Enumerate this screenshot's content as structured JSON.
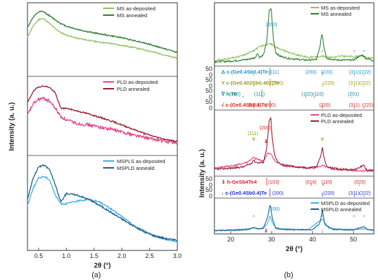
{
  "panels": {
    "a": "(a)",
    "b": "(b)"
  },
  "chart_data": [
    {
      "type": "line",
      "panel": "(a)",
      "xlabel": "2θ (°)",
      "ylabel": "Intensity (a. u.)",
      "xlim": [
        0.3,
        3.0
      ],
      "xticks": [
        "0.5",
        "1.0",
        "1.5",
        "2.0",
        "2.5",
        "3.0"
      ],
      "subplots": [
        {
          "legend_position": "top-right",
          "series": [
            {
              "name": "MS as-deposited",
              "color": "#8cc15a",
              "x": [
                0.3,
                0.4,
                0.5,
                0.55,
                0.6,
                0.7,
                0.8,
                0.9,
                1.0,
                1.2,
                1.4,
                1.6,
                1.8,
                2.0,
                2.2,
                2.4,
                2.6,
                2.8,
                3.0
              ],
              "y": [
                0.55,
                0.72,
                0.82,
                0.84,
                0.83,
                0.76,
                0.68,
                0.62,
                0.58,
                0.53,
                0.5,
                0.47,
                0.45,
                0.42,
                0.39,
                0.35,
                0.31,
                0.26,
                0.22
              ]
            },
            {
              "name": "MS annealed",
              "color": "#2e7d32",
              "x": [
                0.3,
                0.4,
                0.5,
                0.55,
                0.6,
                0.7,
                0.8,
                0.9,
                1.0,
                1.2,
                1.4,
                1.6,
                1.8,
                2.0,
                2.2,
                2.4,
                2.6,
                2.8,
                3.0
              ],
              "y": [
                0.7,
                0.86,
                0.94,
                0.95,
                0.94,
                0.88,
                0.82,
                0.76,
                0.72,
                0.67,
                0.63,
                0.6,
                0.57,
                0.54,
                0.5,
                0.46,
                0.41,
                0.36,
                0.31
              ]
            }
          ]
        },
        {
          "legend_position": "top-right",
          "series": [
            {
              "name": "PLD as-deposited",
              "color": "#e0458a",
              "x": [
                0.3,
                0.4,
                0.5,
                0.6,
                0.7,
                0.8,
                0.9,
                1.0,
                1.2,
                1.4,
                1.6,
                1.8,
                2.0,
                2.2,
                2.4,
                2.6,
                2.8,
                3.0
              ],
              "y": [
                0.52,
                0.68,
                0.75,
                0.76,
                0.72,
                0.62,
                0.5,
                0.45,
                0.4,
                0.38,
                0.35,
                0.32,
                0.28,
                0.24,
                0.2,
                0.17,
                0.14,
                0.12
              ]
            },
            {
              "name": "PLD annealed",
              "color": "#9b1a2a",
              "x": [
                0.3,
                0.4,
                0.5,
                0.6,
                0.7,
                0.8,
                0.9,
                1.0,
                1.2,
                1.4,
                1.6,
                1.8,
                2.0,
                2.2,
                2.4,
                2.6,
                2.8,
                3.0
              ],
              "y": [
                0.7,
                0.86,
                0.93,
                0.94,
                0.92,
                0.84,
                0.62,
                0.62,
                0.58,
                0.54,
                0.49,
                0.44,
                0.38,
                0.32,
                0.26,
                0.21,
                0.17,
                0.14
              ]
            }
          ]
        },
        {
          "legend_position": "top-right",
          "series": [
            {
              "name": "MSPLS as-deposited",
              "color": "#3db0e8",
              "x": [
                0.3,
                0.4,
                0.5,
                0.6,
                0.7,
                0.8,
                0.9,
                1.0,
                1.2,
                1.4,
                1.6,
                1.8,
                2.0,
                2.2,
                2.4,
                2.6,
                2.8,
                3.0
              ],
              "y": [
                0.48,
                0.68,
                0.8,
                0.82,
                0.78,
                0.6,
                0.5,
                0.5,
                0.53,
                0.55,
                0.52,
                0.44,
                0.35,
                0.25,
                0.18,
                0.12,
                0.08,
                0.05
              ]
            },
            {
              "name": "MSPLD anneald",
              "color": "#1a5e86",
              "x": [
                0.3,
                0.4,
                0.5,
                0.6,
                0.7,
                0.8,
                0.9,
                1.0,
                1.2,
                1.4,
                1.6,
                1.8,
                2.0,
                2.2,
                2.4,
                2.6,
                2.8,
                3.0
              ],
              "y": [
                0.55,
                0.8,
                0.93,
                0.95,
                0.9,
                0.72,
                0.52,
                0.62,
                0.6,
                0.55,
                0.48,
                0.4,
                0.32,
                0.24,
                0.17,
                0.12,
                0.09,
                0.07
              ]
            }
          ]
        }
      ]
    },
    {
      "type": "line",
      "panel": "(b)",
      "xlabel": "2θ (°)",
      "ylabel": "Intensity (a. u.)",
      "xlim": [
        16,
        55
      ],
      "xticks": [
        20,
        30,
        40,
        50
      ],
      "ref_yticks": [
        "50",
        "0"
      ],
      "subplots": [
        {
          "name": "MS",
          "legend_position": "top-right",
          "series": [
            {
              "name": "MS as-deposited",
              "color": "#8cc15a",
              "x": [
                16,
                18,
                20,
                22,
                24,
                26,
                27,
                28,
                29,
                29.5,
                30,
                31,
                33,
                36,
                39,
                41,
                42.3,
                43,
                45,
                47,
                50,
                52.2,
                53,
                55
              ],
              "y": [
                0.06,
                0.08,
                0.1,
                0.13,
                0.18,
                0.26,
                0.3,
                0.33,
                0.35,
                0.36,
                0.35,
                0.3,
                0.24,
                0.16,
                0.12,
                0.13,
                0.14,
                0.13,
                0.12,
                0.14,
                0.13,
                0.14,
                0.12,
                0.1
              ]
            },
            {
              "name": "MS annealed",
              "color": "#2e7d32",
              "x": [
                16,
                20,
                24,
                26,
                26.5,
                27,
                28,
                28.8,
                29.4,
                29.9,
                30.4,
                31,
                32,
                34,
                38,
                41,
                41.8,
                42.3,
                42.8,
                43.5,
                46,
                50,
                51,
                52.2,
                53,
                55
              ],
              "y": [
                0.04,
                0.05,
                0.08,
                0.11,
                0.2,
                0.12,
                0.16,
                0.4,
                0.95,
                0.98,
                0.45,
                0.2,
                0.14,
                0.1,
                0.07,
                0.08,
                0.3,
                0.55,
                0.3,
                0.1,
                0.07,
                0.07,
                0.12,
                0.16,
                0.1,
                0.06
              ]
            }
          ],
          "annotations": [
            "(200)",
            "^"
          ]
        },
        {
          "name": "reference patterns (top)",
          "rows": [
            {
              "label": "Δ c-(Ge0.4Sb0.4)Te",
              "color": "#1d8fd6",
              "hkl": [
                "(111)",
                "(200)",
                "(220)",
                "(311)(222)"
              ],
              "peaks": [
                25.6,
                29.6,
                42.4,
                50.2,
                52.6
              ],
              "intensities": [
                20,
                100,
                50,
                20,
                15
              ]
            },
            {
              "label": "Y c-(Ge0.402Sb0.402)Te",
              "color": "#9a9a14",
              "hkl": [
                "(200)",
                "(220)",
                "(311)(222)"
              ],
              "peaks": [
                25.6,
                29.6,
                42.4,
                50.2,
                52.6
              ],
              "intensities": [
                25,
                100,
                45,
                18,
                14
              ]
            },
            {
              "label": "∇ h-Te",
              "color": "#12888a",
              "hkl": [
                "(100)",
                "(111)",
                "(102)(110)",
                "(201)"
              ],
              "peaks": [
                23.0,
                27.6,
                38.3,
                40.5,
                49.6
              ],
              "intensities": [
                20,
                100,
                25,
                18,
                12
              ]
            },
            {
              "label": "√ c-(Ge0.4Sb0.4)Te",
              "color": "#e02020",
              "hkl": [
                "(111)",
                "(200)",
                "(220)",
                "(311)",
                "(222)"
              ],
              "peaks": [
                25.6,
                29.6,
                42.4,
                50.2,
                52.6
              ],
              "intensities": [
                20,
                100,
                50,
                20,
                15
              ]
            }
          ]
        },
        {
          "name": "PLD",
          "legend_position": "top-right",
          "series": [
            {
              "name": "PLD as-deposited",
              "color": "#e0458a",
              "x": [
                16,
                18,
                20,
                22,
                24,
                25.6,
                26,
                27,
                28,
                29,
                30,
                30.5,
                31,
                33,
                36,
                40,
                42.4,
                45,
                50,
                55
              ],
              "y": [
                0.1,
                0.12,
                0.14,
                0.16,
                0.2,
                0.28,
                0.26,
                0.24,
                0.22,
                0.35,
                0.33,
                0.25,
                0.2,
                0.16,
                0.12,
                0.1,
                0.14,
                0.08,
                0.06,
                0.05
              ]
            },
            {
              "name": "PLD annealed",
              "color": "#9b1a2a",
              "x": [
                16,
                20,
                23,
                24,
                25,
                25.6,
                26,
                27,
                28,
                28.8,
                29.4,
                29.8,
                30.2,
                30.8,
                31.5,
                33,
                36,
                39,
                40,
                41,
                42,
                42.4,
                42.8,
                43.5,
                46,
                50,
                51,
                52.6,
                53,
                55
              ],
              "y": [
                0.08,
                0.1,
                0.12,
                0.15,
                0.18,
                0.24,
                0.2,
                0.19,
                0.2,
                0.45,
                0.9,
                0.95,
                0.55,
                0.3,
                0.2,
                0.14,
                0.12,
                0.1,
                0.12,
                0.12,
                0.3,
                0.45,
                0.28,
                0.12,
                0.09,
                0.07,
                0.1,
                0.15,
                0.08,
                0.06
              ]
            }
          ],
          "annotations": [
            "(111)",
            "(200)",
            "Y",
            "⇓"
          ]
        },
        {
          "name": "reference patterns (bottom)",
          "rows": [
            {
              "label": "⇓ h-GeSb4Te4",
              "color": "#e02020",
              "hkl": [
                "(103)",
                "(016)",
                "(110)",
                "(023)"
              ],
              "peaks": [
                28.8,
                39.6,
                42.6,
                51.4
              ],
              "intensities": [
                100,
                25,
                30,
                15
              ]
            },
            {
              "label": "↓ c-(Ge0.4Sb0.4)Te",
              "color": "#1a2ad0",
              "hkl": [
                "(200)",
                "(220)",
                "(311)(222)"
              ],
              "peaks": [
                29.6,
                42.4,
                50.2,
                52.6
              ],
              "intensities": [
                100,
                50,
                20,
                15
              ]
            }
          ]
        },
        {
          "name": "MSPLD",
          "legend_position": "top-right",
          "series": [
            {
              "name": "MSPLD as-deposited",
              "color": "#3db0e8",
              "x": [
                16,
                18,
                20,
                22,
                24,
                25.6,
                26,
                27,
                28,
                29,
                29.6,
                30.2,
                31,
                33,
                36,
                39,
                42.4,
                44,
                47,
                50,
                52.6,
                55
              ],
              "y": [
                0.05,
                0.06,
                0.07,
                0.08,
                0.1,
                0.14,
                0.12,
                0.11,
                0.12,
                0.3,
                0.55,
                0.3,
                0.14,
                0.1,
                0.09,
                0.08,
                0.45,
                0.12,
                0.1,
                0.08,
                0.1,
                0.06
              ]
            },
            {
              "name": "MSPLD annealed",
              "color": "#1a5e86",
              "x": [
                16,
                20,
                24,
                25.6,
                26,
                27,
                28,
                29,
                29.6,
                30.2,
                31,
                33,
                36,
                40,
                41.8,
                42.4,
                43,
                45,
                50,
                51,
                52.6,
                53.5,
                55
              ],
              "y": [
                0.04,
                0.05,
                0.07,
                0.15,
                0.12,
                0.1,
                0.14,
                0.5,
                0.95,
                0.45,
                0.12,
                0.08,
                0.07,
                0.07,
                0.3,
                0.75,
                0.25,
                0.08,
                0.06,
                0.12,
                0.18,
                0.08,
                0.05
              ]
            }
          ],
          "annotations": [
            "(200)",
            "^",
            "⇓",
            "↓"
          ]
        }
      ]
    }
  ]
}
